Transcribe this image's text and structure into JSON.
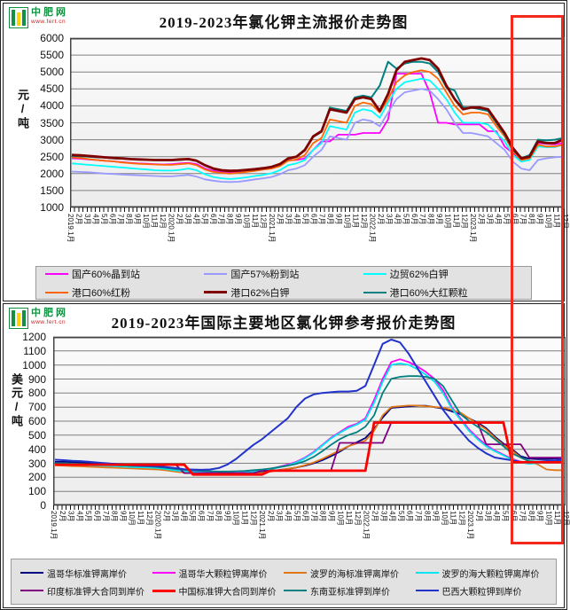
{
  "logo": {
    "name": "中肥网",
    "url": "www.fert.cn"
  },
  "highlight_box": {
    "color": "#f4291c"
  },
  "months_x_labels": [
    "2019.1月",
    "2月",
    "3月",
    "4月",
    "5月",
    "6月",
    "7月",
    "8月",
    "9月",
    "10月",
    "11月",
    "12月",
    "2020.1月",
    "2月",
    "3月",
    "4月",
    "5月",
    "6月",
    "7月",
    "8月",
    "9月",
    "10月",
    "11月",
    "12月",
    "2021.1月",
    "2月",
    "3月",
    "4月",
    "5月",
    "6月",
    "7月",
    "8月",
    "9月",
    "10月",
    "11月",
    "12月",
    "2022.1月",
    "2月",
    "3月",
    "4月",
    "5月",
    "6月",
    "7月",
    "8月",
    "9月",
    "10月",
    "11月",
    "12月",
    "2023.1月",
    "2月",
    "3月",
    "4月",
    "5月",
    "6月",
    "7月",
    "8月",
    "9月",
    "10月",
    "11月",
    "12月"
  ],
  "chart_data": [
    {
      "type": "line",
      "title": "2019-2023年氯化钾主流报价走势图",
      "ylabel": "元/吨",
      "ylim": [
        1000,
        6000
      ],
      "y_ticks": [
        6000,
        5500,
        5000,
        4500,
        4000,
        3500,
        3000,
        2500,
        2000,
        1500,
        1000
      ],
      "grid": true,
      "legend_position": "bottom",
      "series": [
        {
          "name": "国产60%晶到站",
          "color": "#ff00ff",
          "width": 1.8,
          "values": [
            2450,
            2440,
            2420,
            2400,
            2380,
            2360,
            2340,
            2320,
            2300,
            2290,
            2280,
            2270,
            2280,
            2300,
            2320,
            2280,
            2150,
            2080,
            2050,
            2030,
            2050,
            2080,
            2120,
            2150,
            2200,
            2280,
            2400,
            2400,
            2450,
            2700,
            2950,
            2950,
            3150,
            3150,
            3150,
            3200,
            3200,
            3200,
            3600,
            4950,
            4950,
            4950,
            4950,
            4400,
            3500,
            3500,
            3450,
            3450,
            3450,
            3450,
            3250,
            3250,
            2800,
            2600,
            2400,
            2450,
            2900,
            2880,
            2860,
            2900
          ]
        },
        {
          "name": "国产57%粉到站",
          "color": "#9999ff",
          "width": 1.8,
          "values": [
            2060,
            2050,
            2040,
            2020,
            2000,
            1990,
            1970,
            1960,
            1950,
            1940,
            1930,
            1920,
            1920,
            1940,
            1960,
            1910,
            1830,
            1790,
            1760,
            1750,
            1760,
            1790,
            1830,
            1860,
            1900,
            1980,
            2100,
            2150,
            2250,
            2500,
            2700,
            3100,
            3050,
            3000,
            3500,
            3600,
            3550,
            3400,
            3800,
            4200,
            4400,
            4450,
            4500,
            4450,
            4200,
            3900,
            3500,
            3200,
            3200,
            3150,
            3100,
            2900,
            2700,
            2350,
            2150,
            2100,
            2400,
            2450,
            2480,
            2500
          ]
        },
        {
          "name": "边贸62%白钾",
          "color": "#00ffff",
          "width": 1.8,
          "values": [
            2300,
            2280,
            2260,
            2240,
            2220,
            2200,
            2180,
            2160,
            2140,
            2120,
            2100,
            2090,
            2090,
            2110,
            2150,
            2100,
            1980,
            1900,
            1860,
            1840,
            1860,
            1890,
            1930,
            1960,
            2010,
            2100,
            2250,
            2300,
            2400,
            2700,
            2900,
            3400,
            3350,
            3300,
            3800,
            3900,
            3850,
            3650,
            4100,
            4500,
            4700,
            4750,
            4800,
            4750,
            4500,
            4200,
            3800,
            3500,
            3500,
            3500,
            3450,
            3200,
            2950,
            2550,
            2350,
            2400,
            2800,
            2780,
            2780,
            2850
          ]
        },
        {
          "name": "港口60%红粉",
          "color": "#ff6600",
          "width": 1.8,
          "values": [
            2480,
            2460,
            2430,
            2400,
            2380,
            2360,
            2330,
            2310,
            2290,
            2280,
            2270,
            2260,
            2260,
            2280,
            2300,
            2250,
            2120,
            2050,
            2020,
            2000,
            2020,
            2050,
            2080,
            2120,
            2150,
            2220,
            2380,
            2420,
            2550,
            2900,
            3050,
            3600,
            3550,
            3500,
            4000,
            4100,
            4050,
            3800,
            4200,
            4700,
            4900,
            5000,
            5050,
            5000,
            4800,
            4400,
            4000,
            3750,
            3800,
            3800,
            3750,
            3400,
            3100,
            2650,
            2400,
            2450,
            2850,
            2800,
            2800,
            2850
          ]
        },
        {
          "name": "港口62%白钾",
          "color": "#800000",
          "width": 2.8,
          "values": [
            2550,
            2540,
            2520,
            2500,
            2480,
            2460,
            2450,
            2430,
            2420,
            2410,
            2400,
            2400,
            2400,
            2420,
            2430,
            2380,
            2250,
            2150,
            2100,
            2080,
            2090,
            2110,
            2130,
            2160,
            2200,
            2280,
            2450,
            2500,
            2700,
            3100,
            3250,
            3900,
            3850,
            3800,
            4200,
            4250,
            4200,
            3850,
            4350,
            5050,
            5300,
            5350,
            5400,
            5350,
            5100,
            4600,
            4200,
            3900,
            3950,
            3950,
            3900,
            3550,
            3200,
            2750,
            2450,
            2500,
            2950,
            2900,
            2900,
            3000
          ]
        },
        {
          "name": "港口60%大红颗粒",
          "color": "#008080",
          "width": 2,
          "values": [
            2520,
            2510,
            2500,
            2480,
            2470,
            2450,
            2440,
            2430,
            2420,
            2410,
            2400,
            2390,
            2390,
            2400,
            2420,
            2370,
            2240,
            2140,
            2090,
            2070,
            2080,
            2100,
            2120,
            2150,
            2190,
            2270,
            2440,
            2490,
            2680,
            3080,
            3230,
            3950,
            3900,
            3850,
            4250,
            4300,
            4250,
            4600,
            5300,
            5100,
            5250,
            5300,
            5300,
            5250,
            5000,
            4550,
            4450,
            3950,
            3950,
            3900,
            3850,
            3500,
            3150,
            2700,
            2450,
            2550,
            3000,
            2980,
            3000,
            3050
          ]
        }
      ]
    },
    {
      "type": "line",
      "title": "2019-2023年国际主要地区氯化钾参考报价走势图",
      "ylabel": "美元/吨",
      "ylim": [
        0,
        1200
      ],
      "y_ticks": [
        1200,
        1100,
        1000,
        900,
        800,
        700,
        600,
        500,
        400,
        300,
        200,
        100,
        0
      ],
      "grid": true,
      "legend_position": "bottom",
      "series": [
        {
          "name": "温哥华标准钾离岸价",
          "color": "#000080",
          "width": 1.8,
          "values": [
            310,
            310,
            308,
            305,
            302,
            300,
            298,
            295,
            292,
            290,
            288,
            285,
            280,
            270,
            260,
            250,
            245,
            240,
            235,
            232,
            230,
            230,
            232,
            235,
            240,
            245,
            252,
            260,
            270,
            282,
            300,
            322,
            350,
            382,
            420,
            450,
            480,
            545,
            625,
            695,
            700,
            705,
            710,
            710,
            700,
            690,
            670,
            650,
            620,
            590,
            550,
            490,
            440,
            400,
            350,
            332,
            330,
            330,
            334,
            336
          ]
        },
        {
          "name": "温哥华大颗粒钾离岸价",
          "color": "#ff00ff",
          "width": 1.8,
          "values": [
            300,
            298,
            296,
            293,
            290,
            288,
            286,
            284,
            281,
            278,
            276,
            274,
            270,
            262,
            253,
            246,
            240,
            236,
            232,
            230,
            230,
            232,
            236,
            241,
            250,
            261,
            275,
            291,
            311,
            341,
            381,
            431,
            481,
            521,
            561,
            581,
            621,
            751,
            901,
            1021,
            1041,
            1021,
            991,
            951,
            901,
            821,
            701,
            621,
            541,
            481,
            431,
            391,
            361,
            331,
            311,
            301,
            306,
            311,
            316,
            321
          ]
        },
        {
          "name": "波罗的海标准钾离岸价",
          "color": "#e07818",
          "width": 1.8,
          "values": [
            285,
            283,
            280,
            278,
            275,
            272,
            270,
            268,
            265,
            263,
            260,
            258,
            255,
            249,
            240,
            233,
            228,
            223,
            220,
            218,
            218,
            220,
            223,
            226,
            231,
            240,
            250,
            261,
            271,
            286,
            306,
            331,
            361,
            391,
            421,
            441,
            461,
            531,
            641,
            701,
            706,
            711,
            711,
            706,
            701,
            696,
            681,
            661,
            621,
            581,
            541,
            481,
            431,
            391,
            341,
            311,
            291,
            256,
            251,
            251
          ]
        },
        {
          "name": "波罗的海大颗粒钾离岸价",
          "color": "#00e5ee",
          "width": 1.8,
          "values": [
            295,
            293,
            291,
            288,
            285,
            283,
            281,
            279,
            276,
            273,
            271,
            269,
            265,
            258,
            249,
            243,
            237,
            233,
            229,
            227,
            227,
            229,
            233,
            238,
            246,
            256,
            271,
            286,
            306,
            336,
            376,
            426,
            476,
            516,
            551,
            576,
            611,
            731,
            881,
            1001,
            1011,
            1001,
            971,
            931,
            881,
            801,
            691,
            611,
            531,
            471,
            421,
            386,
            356,
            326,
            306,
            296,
            301,
            306,
            311,
            316
          ]
        },
        {
          "name": "印度标准钾大合同到岸价",
          "color": "#800080",
          "width": 1.8,
          "values": [
            290,
            290,
            290,
            290,
            290,
            290,
            290,
            290,
            290,
            290,
            290,
            290,
            290,
            290,
            290,
            230,
            230,
            230,
            230,
            230,
            230,
            230,
            230,
            230,
            247,
            247,
            247,
            247,
            247,
            247,
            247,
            247,
            247,
            445,
            445,
            445,
            445,
            445,
            445,
            590,
            590,
            590,
            590,
            590,
            590,
            590,
            590,
            590,
            590,
            590,
            435,
            435,
            435,
            435,
            435,
            340,
            340,
            340,
            340,
            340
          ]
        },
        {
          "name": "中国标准钾大合同到岸价",
          "color": "#ff0000",
          "width": 2.8,
          "values": [
            290,
            290,
            290,
            290,
            290,
            290,
            290,
            290,
            290,
            290,
            290,
            290,
            290,
            290,
            290,
            290,
            220,
            220,
            220,
            220,
            220,
            220,
            220,
            220,
            220,
            247,
            247,
            247,
            247,
            247,
            247,
            247,
            247,
            247,
            247,
            247,
            247,
            590,
            590,
            590,
            590,
            590,
            590,
            590,
            590,
            590,
            590,
            590,
            590,
            590,
            590,
            590,
            590,
            307,
            307,
            307,
            307,
            307,
            307,
            307
          ]
        },
        {
          "name": "东南亚标准钾到岸价",
          "color": "#008080",
          "width": 1.8,
          "values": [
            300,
            300,
            298,
            296,
            293,
            291,
            289,
            286,
            284,
            281,
            279,
            277,
            272,
            266,
            259,
            253,
            249,
            246,
            243,
            241,
            241,
            243,
            246,
            251,
            256,
            263,
            273,
            283,
            296,
            316,
            346,
            386,
            431,
            471,
            501,
            521,
            561,
            641,
            801,
            901,
            916,
            921,
            921,
            916,
            901,
            851,
            751,
            651,
            601,
            561,
            521,
            471,
            421,
            371,
            341,
            316,
            311,
            311,
            316,
            316
          ]
        },
        {
          "name": "巴西大颗粒钾到岸价",
          "color": "#2233cc",
          "width": 2,
          "values": [
            325,
            322,
            318,
            315,
            310,
            305,
            300,
            295,
            290,
            286,
            283,
            281,
            278,
            272,
            265,
            258,
            255,
            253,
            256,
            266,
            291,
            331,
            381,
            431,
            471,
            521,
            571,
            621,
            701,
            761,
            791,
            801,
            806,
            811,
            811,
            816,
            851,
            1001,
            1151,
            1181,
            1161,
            1081,
            981,
            881,
            781,
            681,
            601,
            531,
            461,
            411,
            371,
            341,
            331,
            321,
            311,
            306,
            311,
            316,
            321,
            326
          ]
        }
      ]
    }
  ]
}
